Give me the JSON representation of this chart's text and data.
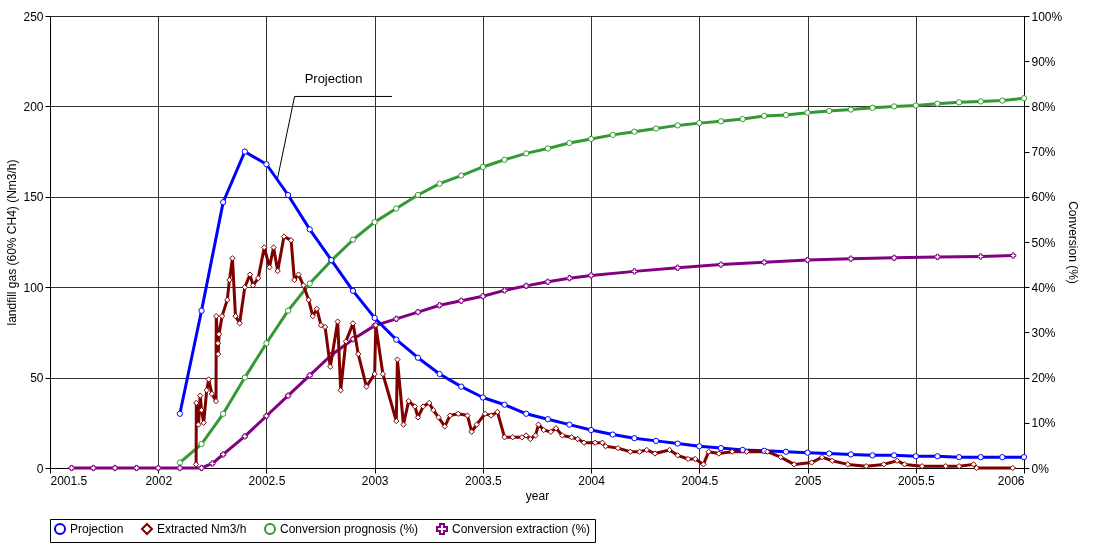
{
  "chart_data": {
    "type": "line",
    "xlabel": "year",
    "ylabel": "landfill gas (60% CH4) (Nm3/h)",
    "y2label": "Conversion (%)",
    "xlim": [
      2001.5,
      2006
    ],
    "xticks": [
      2001.5,
      2002,
      2002.5,
      2003,
      2003.5,
      2004,
      2004.5,
      2005,
      2005.5,
      2006
    ],
    "ylim": [
      0,
      250
    ],
    "yticks": [
      0,
      50,
      100,
      150,
      200,
      250
    ],
    "y2lim": [
      0,
      100
    ],
    "y2ticks": [
      {
        "value": 0,
        "label": "0%"
      },
      {
        "value": 10,
        "label": "10%"
      },
      {
        "value": 20,
        "label": "20%"
      },
      {
        "value": 30,
        "label": "30%"
      },
      {
        "value": 40,
        "label": "40%"
      },
      {
        "value": 50,
        "label": "50%"
      },
      {
        "value": 60,
        "label": "60%"
      },
      {
        "value": 70,
        "label": "70%"
      },
      {
        "value": 80,
        "label": "80%"
      },
      {
        "value": 90,
        "label": "90%"
      },
      {
        "value": 100,
        "label": "100%"
      }
    ],
    "grid": true,
    "legend": "bottom",
    "line_style": "solid",
    "annotations": [
      {
        "text": "Projection",
        "x": 2002.55,
        "y": 159.5
      }
    ],
    "series": [
      {
        "name": "Projection",
        "color": "#0000ff",
        "marker": "circle",
        "x": [
          2002.1,
          2002.2,
          2002.3,
          2002.4,
          2002.5,
          2002.6,
          2002.7,
          2002.8,
          2002.9,
          2003.0,
          2003.1,
          2003.2,
          2003.3,
          2003.4,
          2003.5,
          2003.6,
          2003.7,
          2003.8,
          2003.9,
          2004.0,
          2004.1,
          2004.2,
          2004.3,
          2004.4,
          2004.5,
          2004.6,
          2004.7,
          2004.8,
          2004.9,
          2005.0,
          2005.1,
          2005.2,
          2005.3,
          2005.4,
          2005.5,
          2005.6,
          2005.7,
          2005.8,
          2005.9,
          2006.0
        ],
        "values": [
          30,
          87,
          147,
          175,
          168,
          151,
          132,
          115,
          98,
          83,
          71,
          61,
          52,
          45,
          39,
          35,
          30,
          27,
          24,
          21,
          18.5,
          16.5,
          15,
          13.5,
          12,
          11,
          10,
          9.5,
          9,
          8.5,
          8,
          7.5,
          7,
          7,
          6.5,
          6.5,
          6,
          6,
          6,
          6
        ]
      },
      {
        "name": "Extracted Nm3/h",
        "color": "#800000",
        "marker": "diamond",
        "x": [
          2002.175,
          2002.176,
          2002.186,
          2002.194,
          2002.2,
          2002.21,
          2002.224,
          2002.233,
          2002.248,
          2002.267,
          2002.268,
          2002.276,
          2002.277,
          2002.281,
          2002.295,
          2002.319,
          2002.329,
          2002.343,
          2002.357,
          2002.376,
          2002.4,
          2002.424,
          2002.438,
          2002.462,
          2002.49,
          2002.514,
          2002.533,
          2002.552,
          2002.581,
          2002.614,
          2002.629,
          2002.648,
          2002.671,
          2002.695,
          2002.714,
          2002.733,
          2002.752,
          2002.771,
          2002.795,
          2002.829,
          2002.843,
          2002.867,
          2002.9,
          2002.924,
          2002.962,
          2003.0,
          2003.005,
          2003.038,
          2003.1,
          2003.105,
          2003.133,
          2003.157,
          2003.186,
          2003.2,
          2003.224,
          2003.252,
          2003.271,
          2003.295,
          2003.324,
          2003.348,
          2003.386,
          2003.429,
          2003.448,
          2003.471,
          2003.51,
          2003.538,
          2003.567,
          2003.6,
          2003.638,
          2003.681,
          2003.7,
          2003.719,
          2003.743,
          2003.757,
          2003.781,
          2003.814,
          2003.838,
          2003.867,
          2003.91,
          2003.938,
          2003.967,
          2004.019,
          2004.052,
          2004.067,
          2004.124,
          2004.181,
          2004.224,
          2004.257,
          2004.295,
          2004.362,
          2004.4,
          2004.448,
          2004.481,
          2004.519,
          2004.543,
          2004.59,
          2004.652,
          2004.719,
          2004.814,
          2004.876,
          2004.938,
          2005.019,
          2005.067,
          2005.114,
          2005.186,
          2005.271,
          2005.352,
          2005.414,
          2005.448,
          2005.529,
          2005.638,
          2005.7,
          2005.767,
          2005.781,
          2005.948
        ],
        "values": [
          2,
          36,
          24,
          40,
          32,
          25,
          43,
          49,
          41,
          37,
          84,
          69,
          63,
          74,
          84,
          93,
          104,
          116,
          84,
          80,
          100,
          107,
          101,
          105,
          122,
          111,
          122,
          109,
          128,
          126,
          104,
          107,
          101,
          93,
          84,
          88,
          79,
          78,
          56,
          81,
          43,
          70,
          80,
          63,
          45,
          52,
          79,
          52,
          26,
          60,
          24,
          37,
          34,
          28,
          34,
          36,
          32,
          28,
          23,
          29,
          30,
          29,
          20,
          24,
          30,
          29,
          31,
          17,
          17,
          17,
          18,
          16,
          18,
          24,
          21,
          20,
          22,
          18,
          17,
          16,
          14,
          14,
          14,
          12,
          11,
          9,
          9,
          10,
          8,
          10,
          7,
          5,
          5,
          2,
          9,
          8,
          9,
          9,
          9,
          6,
          2,
          3,
          6,
          4,
          2,
          1,
          2,
          4,
          2,
          1,
          1,
          1,
          2,
          0,
          0
        ]
      },
      {
        "name": "Conversion prognosis (%)",
        "color": "#339933",
        "marker": "circle",
        "axis": "y2",
        "x": [
          2002.1,
          2002.2,
          2002.3,
          2002.4,
          2002.5,
          2002.6,
          2002.7,
          2002.8,
          2002.9,
          2003.0,
          2003.1,
          2003.2,
          2003.3,
          2003.4,
          2003.5,
          2003.6,
          2003.7,
          2003.8,
          2003.9,
          2004.0,
          2004.1,
          2004.2,
          2004.3,
          2004.4,
          2004.5,
          2004.6,
          2004.7,
          2004.8,
          2004.9,
          2005.0,
          2005.1,
          2005.2,
          2005.3,
          2005.4,
          2005.5,
          2005.6,
          2005.7,
          2005.8,
          2005.9,
          2006.0
        ],
        "values": [
          1.2,
          5.3,
          12,
          20,
          27.6,
          34.8,
          40.8,
          45.9,
          50.5,
          54.4,
          57.4,
          60.4,
          62.9,
          64.7,
          66.6,
          68.2,
          69.6,
          70.7,
          71.9,
          72.8,
          73.7,
          74.4,
          75.1,
          75.8,
          76.3,
          76.7,
          77.2,
          77.9,
          78.1,
          78.6,
          79.0,
          79.3,
          79.7,
          80.0,
          80.2,
          80.6,
          80.9,
          81.1,
          81.3,
          81.8
        ]
      },
      {
        "name": "Conversion extraction (%)",
        "color": "#800080",
        "marker": "cross",
        "axis": "y2",
        "x": [
          2001.6,
          2001.7,
          2001.8,
          2001.9,
          2002.0,
          2002.1,
          2002.2,
          2002.25,
          2002.3,
          2002.4,
          2002.5,
          2002.6,
          2002.7,
          2002.8,
          2002.9,
          2003.0,
          2003.1,
          2003.2,
          2003.3,
          2003.4,
          2003.5,
          2003.6,
          2003.7,
          2003.8,
          2003.9,
          2004.0,
          2004.2,
          2004.4,
          2004.6,
          2004.8,
          2005.0,
          2005.2,
          2005.4,
          2005.6,
          2005.8,
          2005.95
        ],
        "values": [
          0,
          0,
          0,
          0,
          0,
          0,
          0,
          1,
          3,
          7,
          11.5,
          16,
          20.5,
          25,
          28.5,
          31.5,
          33,
          34.5,
          36,
          37,
          38,
          39.3,
          40.3,
          41.2,
          42,
          42.6,
          43.5,
          44.3,
          45,
          45.5,
          46,
          46.3,
          46.5,
          46.7,
          46.8,
          47
        ]
      }
    ]
  }
}
